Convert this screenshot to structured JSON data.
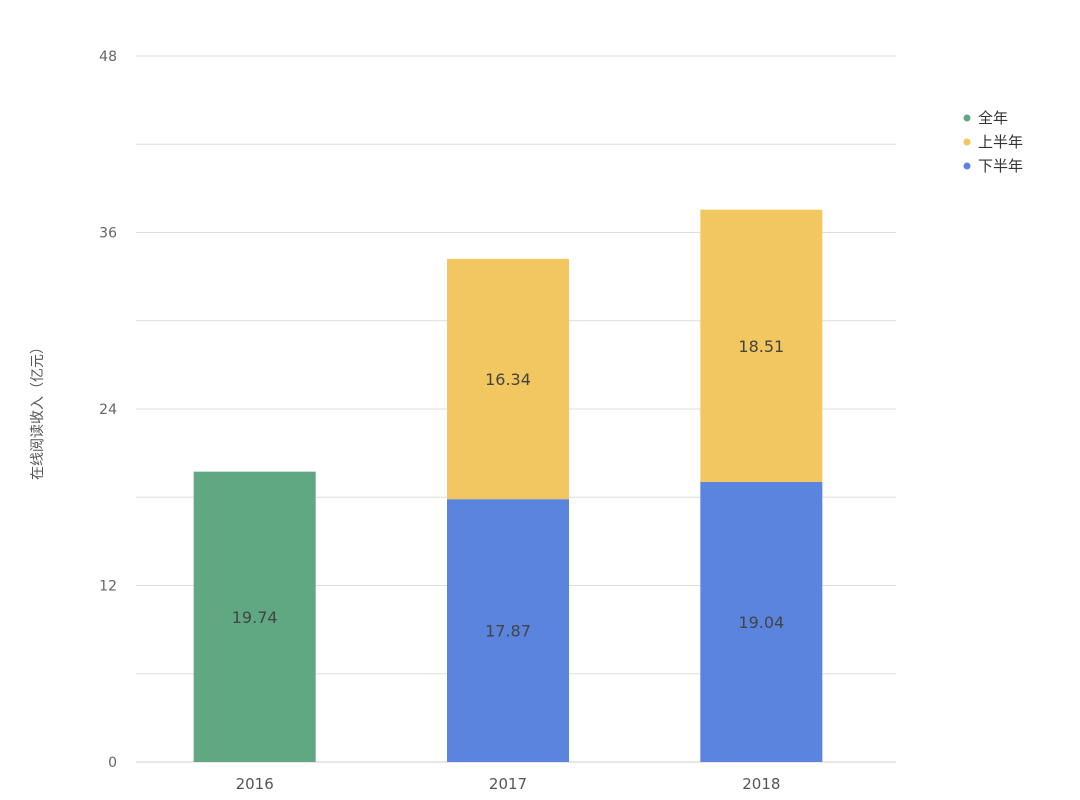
{
  "chart_data": {
    "type": "bar",
    "stacked": true,
    "categories": [
      "2016",
      "2017",
      "2018"
    ],
    "series": [
      {
        "name": "全年",
        "color": "#5fa882",
        "values": [
          19.74,
          null,
          null
        ]
      },
      {
        "name": "下半年",
        "color": "#5b84de",
        "values": [
          null,
          17.87,
          19.04
        ]
      },
      {
        "name": "上半年",
        "color": "#f2c75f",
        "values": [
          null,
          16.34,
          18.51
        ]
      }
    ],
    "legend_order": [
      "全年",
      "上半年",
      "下半年"
    ],
    "legend_position": "right-top",
    "ylabel": "在线阅读收入（亿元）",
    "ylim": [
      0,
      48
    ],
    "yticks": [
      0,
      12,
      24,
      36,
      48
    ],
    "grid_step": 6,
    "grid": true
  }
}
